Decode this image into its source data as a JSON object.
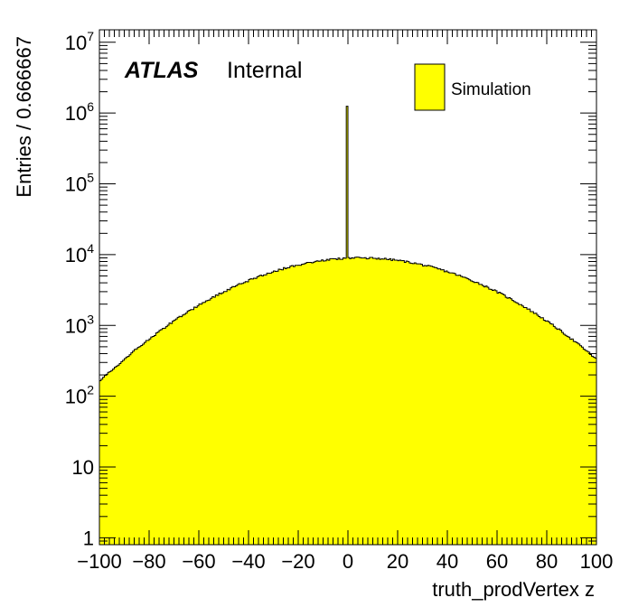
{
  "chart_data": {
    "type": "histogram",
    "xlabel": "truth_prodVertex z",
    "ylabel": "Entries / 0.666667",
    "xlim": [
      -100,
      100
    ],
    "ylim": [
      0.8,
      15000000
    ],
    "log_y": true,
    "bin_width": 0.666667,
    "x_ticks": [
      -100,
      -80,
      -60,
      -40,
      -20,
      0,
      20,
      40,
      60,
      80,
      100
    ],
    "x_tick_labels": [
      "−100",
      "−80",
      "−60",
      "−40",
      "−20",
      "0",
      "20",
      "40",
      "60",
      "80",
      "100"
    ],
    "y_ticks": [
      {
        "value": 1,
        "base": "1",
        "exp": ""
      },
      {
        "value": 10,
        "base": "10",
        "exp": ""
      },
      {
        "value": 100,
        "base": "10",
        "exp": "2"
      },
      {
        "value": 1000,
        "base": "10",
        "exp": "3"
      },
      {
        "value": 10000,
        "base": "10",
        "exp": "4"
      },
      {
        "value": 100000,
        "base": "10",
        "exp": "5"
      },
      {
        "value": 1000000,
        "base": "10",
        "exp": "6"
      },
      {
        "value": 10000000,
        "base": "10",
        "exp": "7"
      }
    ],
    "distribution": {
      "shape": "gaussian",
      "peak": 9000,
      "mean": 5,
      "sigma": 37,
      "spike_x": 0,
      "spike_value": 1250000
    },
    "series": [
      {
        "name": "Simulation",
        "color": "#ffff00",
        "edge_color": "#000000"
      }
    ],
    "legend": {
      "position": "top-right"
    },
    "label_bold": "ATLAS",
    "label_text": "Internal"
  }
}
